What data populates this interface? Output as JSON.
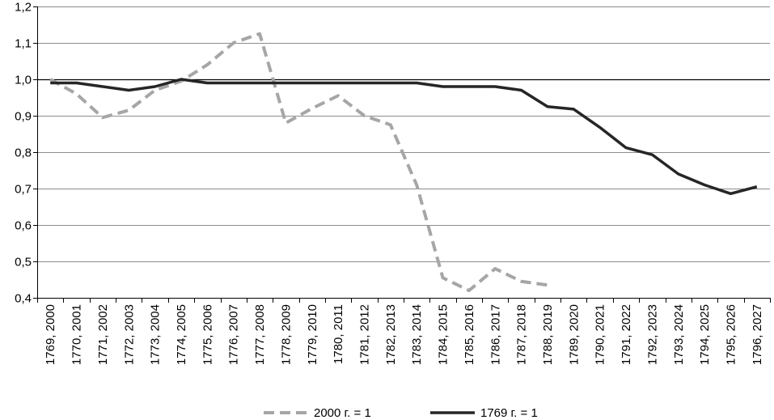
{
  "chart_data": {
    "type": "line",
    "categories": [
      "1769, 2000",
      "1770, 2001",
      "1771, 2002",
      "1772, 2003",
      "1773, 2004",
      "1774, 2005",
      "1775, 2006",
      "1776, 2007",
      "1777, 2008",
      "1778, 2009",
      "1779, 2010",
      "1780, 2011",
      "1781, 2012",
      "1782, 2013",
      "1783, 2014",
      "1784, 2015",
      "1785, 2016",
      "1786, 2017",
      "1787, 2018",
      "1788, 2019",
      "1789, 2020",
      "1790, 2021",
      "1791, 2022",
      "1792, 2023",
      "1793, 2024",
      "1794, 2025",
      "1795, 2026",
      "1796, 2027"
    ],
    "y_tick_labels": [
      "0,4",
      "0,5",
      "0,6",
      "0,7",
      "0,8",
      "0,9",
      "1,0",
      "1,1",
      "1,2"
    ],
    "ylim": [
      0.4,
      1.2
    ],
    "grid": true,
    "legend_position": "bottom",
    "series": [
      {
        "name": "2000 г. = 1",
        "style": "dashed",
        "color": "#a6a6a6",
        "values": [
          1.0,
          0.96,
          0.895,
          0.915,
          0.97,
          0.995,
          1.04,
          1.1,
          1.125,
          0.88,
          0.92,
          0.955,
          0.9,
          0.875,
          0.71,
          0.455,
          0.42,
          0.48,
          0.445,
          0.435,
          null,
          null,
          null,
          null,
          null,
          null,
          null,
          null
        ]
      },
      {
        "name": "1769 г. = 1",
        "style": "solid",
        "color": "#262626",
        "values": [
          0.99,
          0.99,
          0.98,
          0.97,
          0.98,
          1.0,
          0.99,
          0.99,
          0.99,
          0.99,
          0.99,
          0.99,
          0.99,
          0.99,
          0.99,
          0.98,
          0.98,
          0.98,
          0.97,
          0.925,
          0.918,
          0.868,
          0.812,
          0.793,
          0.74,
          0.71,
          0.686,
          0.705
        ]
      }
    ]
  }
}
